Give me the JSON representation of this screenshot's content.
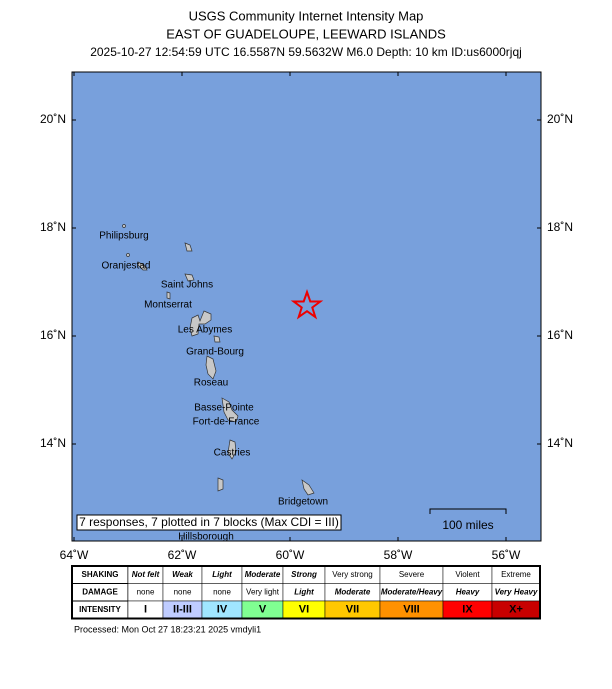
{
  "header": {
    "title": "USGS Community Internet Intensity Map",
    "region": "EAST OF GUADELOUPE, LEEWARD ISLANDS",
    "event": "2025-10-27 12:54:59 UTC 16.5587N 59.5632W M6.0 Depth: 10 km ID:us6000rjqj"
  },
  "map": {
    "lat_labels": [
      "20˚N",
      "18˚N",
      "16˚N",
      "14˚N"
    ],
    "lon_labels": [
      "64˚W",
      "62˚W",
      "60˚W",
      "58˚W",
      "56˚W"
    ],
    "places": [
      "Philipsburg",
      "Oranjestad",
      "Saint Johns",
      "Montserrat",
      "Les Abymes",
      "Grand-Bourg",
      "Roseau",
      "Basse-Pointe",
      "Fort-de-France",
      "Castries",
      "Bridgetown",
      "Hillsborough"
    ],
    "responses": "7 responses, 7 plotted in 7 blocks (Max CDI = III)",
    "scale": "100 miles"
  },
  "legend": {
    "rows": [
      {
        "label": "SHAKING",
        "cells": [
          "Not felt",
          "Weak",
          "Light",
          "Moderate",
          "Strong",
          "Very strong",
          "Severe",
          "Violent",
          "Extreme"
        ]
      },
      {
        "label": "DAMAGE",
        "cells": [
          "none",
          "none",
          "none",
          "Very light",
          "Light",
          "Moderate",
          "Moderate/Heavy",
          "Heavy",
          "Very Heavy"
        ]
      },
      {
        "label": "INTENSITY",
        "cells": [
          "I",
          "II-III",
          "IV",
          "V",
          "VI",
          "VII",
          "VIII",
          "IX",
          "X+"
        ]
      }
    ],
    "colors": [
      "#ffffff",
      "#bfccff",
      "#a0e6ff",
      "#80ff92",
      "#ffff00",
      "#ffc800",
      "#ff9100",
      "#ff0000",
      "#c80000"
    ]
  },
  "footer": "Processed: Mon Oct 27 18:23:21 2025 vmdyli1"
}
